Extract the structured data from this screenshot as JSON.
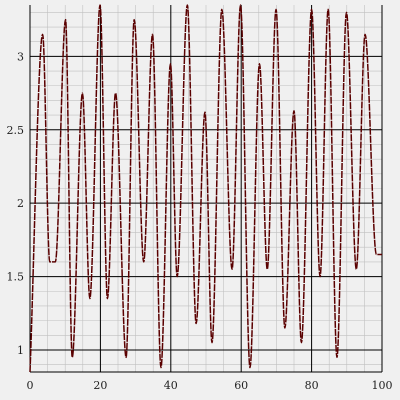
{
  "chart_data": {
    "type": "line",
    "title": "",
    "xlabel": "",
    "ylabel": "",
    "xlim": [
      0,
      100
    ],
    "ylim": [
      0.85,
      3.35
    ],
    "grid": true,
    "minor_grid": true,
    "legend": "none",
    "x_ticks": [
      0,
      20,
      40,
      60,
      80,
      100
    ],
    "x_tick_labels": [
      "0",
      "20",
      "40",
      "60",
      "80",
      "100"
    ],
    "y_ticks": [
      1,
      1.5,
      2,
      2.5,
      3
    ],
    "y_tick_labels": [
      "1",
      "1.5",
      "2",
      "2.5",
      "3"
    ],
    "colors": {
      "background": "#f0f0f0",
      "major_grid": "#000000",
      "minor_grid": "#c0c0c0",
      "line": "#5a0000"
    },
    "series": [
      {
        "x": [
          0,
          3.6,
          5.6,
          7.2,
          10.1,
          12.0,
          14.9,
          17.0,
          19.9,
          22.0,
          24.3,
          27.3,
          29.6,
          32.3,
          34.8,
          37.2,
          39.9,
          41.8,
          44.7,
          47.2,
          49.7,
          51.7,
          54.5,
          57.4,
          59.8,
          62.5,
          65.2,
          67.4,
          69.9,
          72.4,
          75.0,
          77.1,
          80.0,
          82.4,
          84.7,
          87.2,
          89.9,
          92.7,
          95.2,
          98.4,
          100
        ],
        "y": [
          0.85,
          3.15,
          1.6,
          1.6,
          3.25,
          0.95,
          2.75,
          1.35,
          3.35,
          1.35,
          2.75,
          0.95,
          3.25,
          1.6,
          3.15,
          0.88,
          2.95,
          1.5,
          3.35,
          1.18,
          2.62,
          1.05,
          3.32,
          1.55,
          3.35,
          0.88,
          2.95,
          1.55,
          3.32,
          1.15,
          2.63,
          1.05,
          3.32,
          1.5,
          3.32,
          0.95,
          3.3,
          1.55,
          3.15,
          1.65,
          1.65
        ]
      }
    ]
  }
}
